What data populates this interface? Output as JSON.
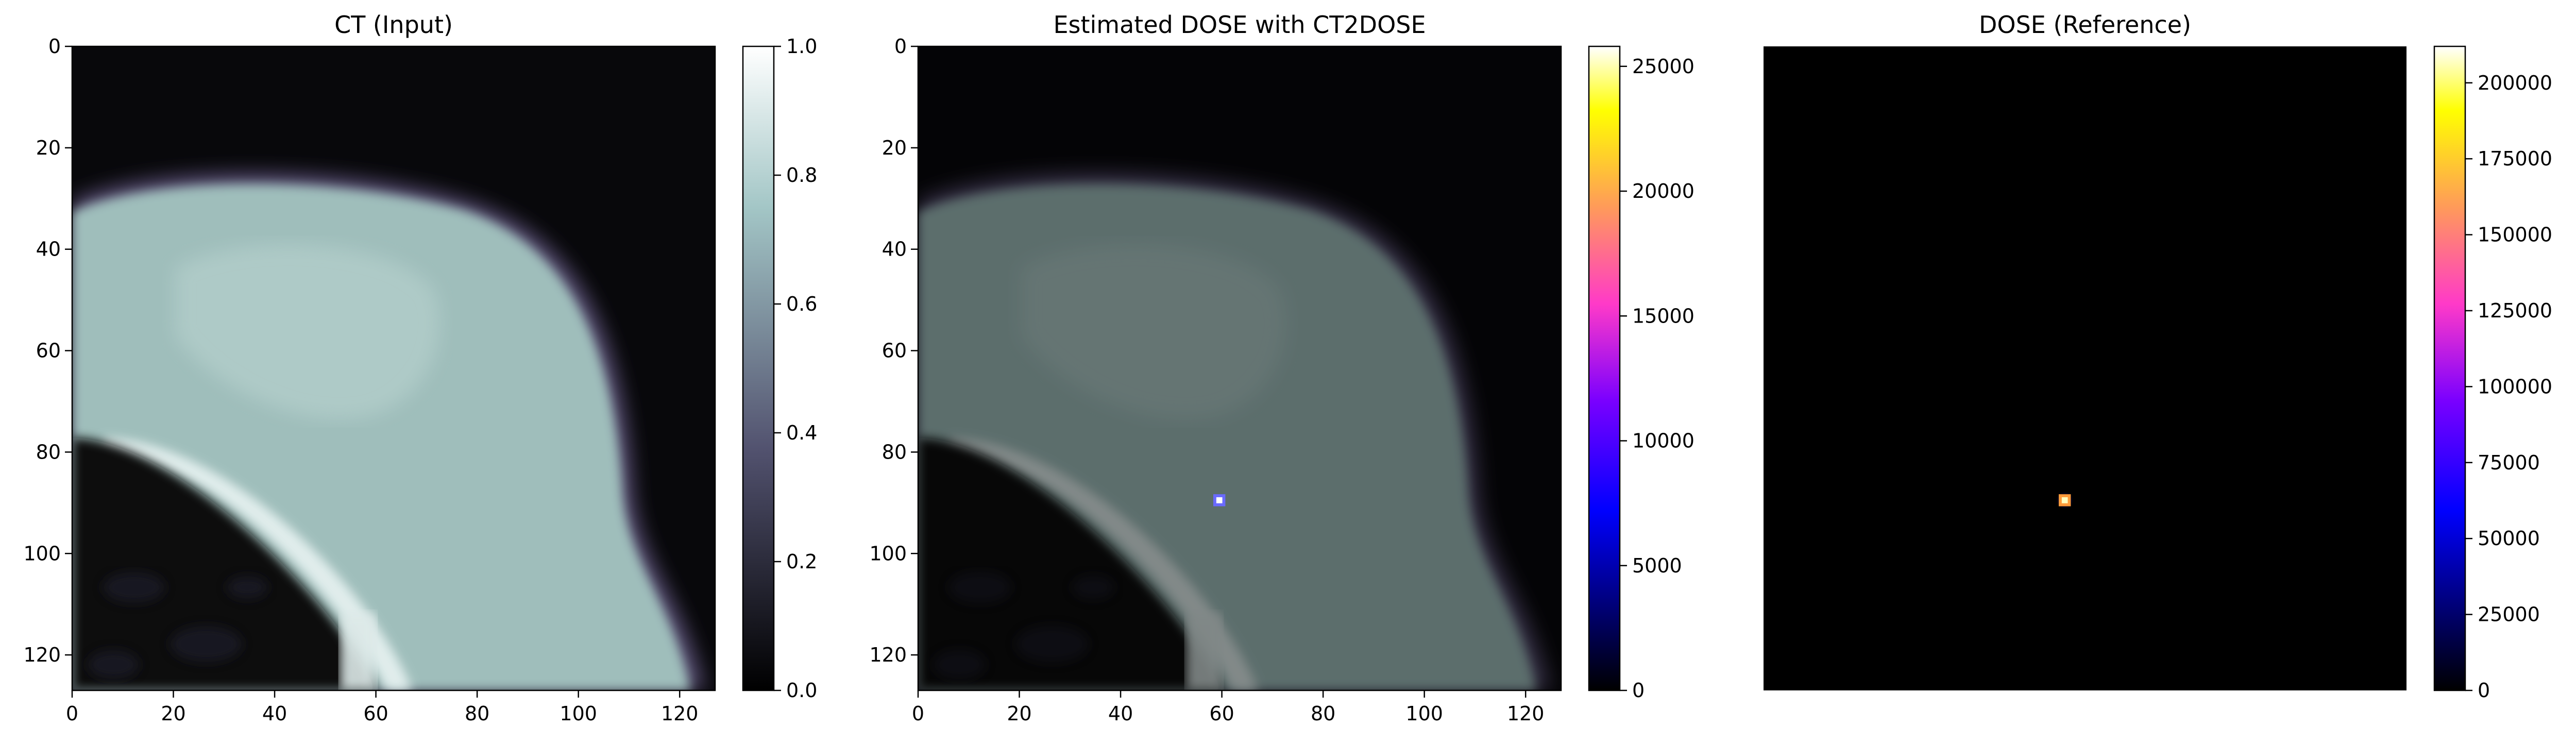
{
  "chart_data": [
    {
      "type": "heatmap",
      "title": "CT (Input)",
      "colormap": "bone",
      "xlim": [
        0,
        127
      ],
      "ylim": [
        127,
        0
      ],
      "x_ticks": [
        0,
        20,
        40,
        60,
        80,
        100,
        120
      ],
      "y_ticks": [
        0,
        20,
        40,
        60,
        80,
        100,
        120
      ],
      "colorbar": {
        "range": [
          0.0,
          1.0
        ],
        "ticks": [
          "0.0",
          "0.2",
          "0.4",
          "0.6",
          "0.8",
          "1.0"
        ]
      }
    },
    {
      "type": "heatmap",
      "title": "Estimated DOSE with CT2DOSE",
      "colormap": "gnuplot2 overlay on bone",
      "xlim": [
        0,
        127
      ],
      "ylim": [
        127,
        0
      ],
      "x_ticks": [
        0,
        20,
        40,
        60,
        80,
        100,
        120
      ],
      "y_ticks": [
        0,
        20,
        40,
        60,
        80,
        100,
        120
      ],
      "hotspot": {
        "x": 59,
        "y": 89
      },
      "colorbar": {
        "range": [
          0,
          25800
        ],
        "ticks": [
          "0",
          "5000",
          "10000",
          "15000",
          "20000",
          "25000"
        ]
      }
    },
    {
      "type": "heatmap",
      "title": "DOSE (Reference)",
      "colormap": "gnuplot2",
      "axes_visible": false,
      "hotspot": {
        "x": 59,
        "y": 89
      },
      "colorbar": {
        "range": [
          0,
          212000
        ],
        "ticks": [
          "0",
          "25000",
          "50000",
          "75000",
          "100000",
          "125000",
          "150000",
          "175000",
          "200000"
        ]
      }
    }
  ]
}
